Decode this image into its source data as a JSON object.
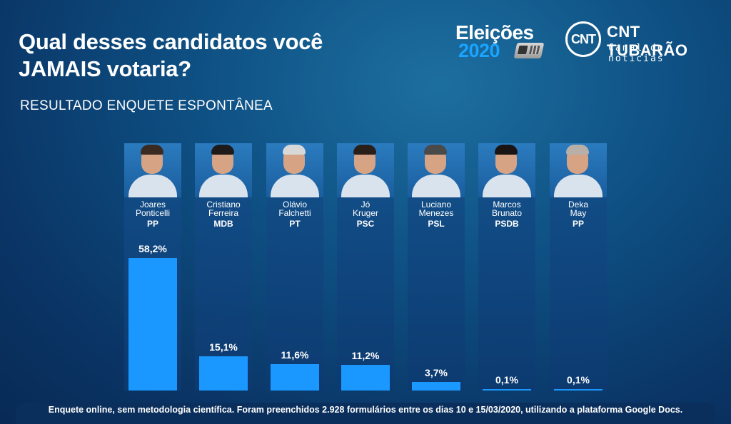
{
  "header": {
    "title_line1": "Qual desses candidatos você",
    "title_line2": "JAMAIS votaria?",
    "subtitle": "RESULTADO ENQUETE ESPONTÂNEA"
  },
  "logos": {
    "elections_word": "Eleições",
    "elections_year": "2020",
    "cnt_badge": "CNT",
    "cnt_name": "CNT TUBARÃO",
    "cnt_tagline": "Canal de notícias"
  },
  "chart_data": {
    "type": "bar",
    "title": "Qual desses candidatos você JAMAIS votaria?",
    "subtitle": "RESULTADO ENQUETE ESPONTÂNEA",
    "ylim": [
      0,
      60
    ],
    "categories": [
      {
        "name_line1": "Joares",
        "name_line2": "Ponticelli",
        "party": "PP"
      },
      {
        "name_line1": "Cristiano",
        "name_line2": "Ferreira",
        "party": "MDB"
      },
      {
        "name_line1": "Olávio",
        "name_line2": "Falchetti",
        "party": "PT"
      },
      {
        "name_line1": "Jó",
        "name_line2": "Kruger",
        "party": "PSC"
      },
      {
        "name_line1": "Luciano",
        "name_line2": "Menezes",
        "party": "PSL"
      },
      {
        "name_line1": "Marcos",
        "name_line2": "Brunato",
        "party": "PSDB"
      },
      {
        "name_line1": "Deka",
        "name_line2": "May",
        "party": "PP"
      }
    ],
    "values": [
      58.2,
      15.1,
      11.6,
      11.2,
      3.7,
      0.1,
      0.1
    ],
    "value_labels": [
      "58,2%",
      "15,1%",
      "11,6%",
      "11,2%",
      "3,7%",
      "0,1%",
      "0,1%"
    ],
    "bar_color": "#1a98ff",
    "hair_colors": [
      "#3a2a22",
      "#1e1a1a",
      "#d8d8d8",
      "#2a1e18",
      "#4a4a4a",
      "#1a1414",
      "#b8b0a8"
    ]
  },
  "footer": {
    "note": "Enquete online, sem metodologia científica. Foram preenchidos 2.928 formulários entre os dias 10 e 15/03/2020, utilizando a plataforma Google Docs."
  }
}
